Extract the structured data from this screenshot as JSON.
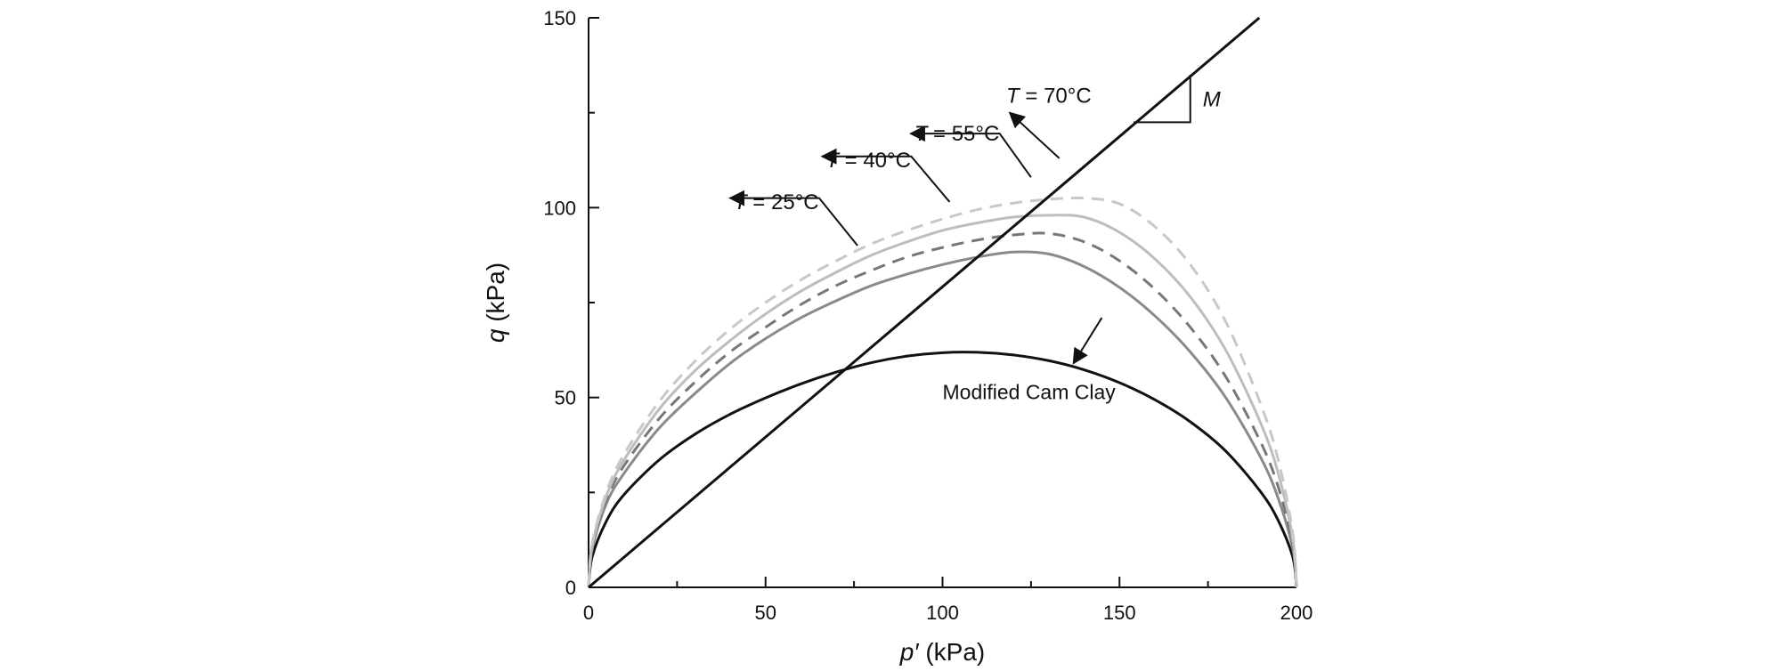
{
  "chart_data": {
    "type": "line",
    "xlabel_var": "p′",
    "xlabel_unit": " (kPa)",
    "ylabel_var": "q",
    "ylabel_unit": " (kPa)",
    "xlim": [
      0,
      200
    ],
    "ylim": [
      0,
      150
    ],
    "x_ticks": [
      0,
      50,
      100,
      150,
      200
    ],
    "y_ticks": [
      0,
      50,
      100,
      150
    ],
    "grid": false,
    "series": [
      {
        "key": "mcc",
        "name": "Modified Cam Clay",
        "color": "#111111",
        "dashed": false,
        "x": [
          0,
          1,
          5,
          10,
          20,
          30,
          40,
          50,
          60,
          70,
          80,
          90,
          100,
          110,
          120,
          130,
          140,
          150,
          160,
          170,
          180,
          190,
          195,
          199,
          200
        ],
        "y": [
          0,
          8,
          17.4,
          24.4,
          33.6,
          40.3,
          45.6,
          49.9,
          53.6,
          56.7,
          59.2,
          60.9,
          61.8,
          61.9,
          61.2,
          59.7,
          57.3,
          53.9,
          49.4,
          43.6,
          35.9,
          25.0,
          17.3,
          7.8,
          0
        ]
      },
      {
        "key": "t25",
        "name": "T = 25°C",
        "color": "#8a8a8a",
        "dashed": false,
        "x": [
          0,
          1,
          5,
          10,
          20,
          30,
          40,
          50,
          60,
          70,
          80,
          90,
          100,
          110,
          120,
          130,
          140,
          150,
          160,
          170,
          180,
          190,
          195,
          199,
          200
        ],
        "y": [
          0,
          10,
          22,
          30,
          42,
          51,
          59,
          65.5,
          71,
          75.5,
          79.5,
          82.5,
          85,
          87,
          88.3,
          87.8,
          84.5,
          79,
          71.5,
          62,
          50,
          34,
          23,
          10,
          0
        ]
      },
      {
        "key": "t40",
        "name": "T = 40°C",
        "color": "#777777",
        "dashed": true,
        "x": [
          0,
          1,
          5,
          10,
          20,
          30,
          40,
          50,
          60,
          70,
          80,
          90,
          100,
          110,
          120,
          130,
          140,
          150,
          160,
          170,
          180,
          190,
          195,
          199,
          200
        ],
        "y": [
          0,
          10.5,
          23,
          32,
          44.5,
          54,
          62,
          68.5,
          74.5,
          79.5,
          83.5,
          87,
          89.5,
          91.5,
          92.8,
          93.2,
          91,
          86,
          78.5,
          68.5,
          55.5,
          38,
          26,
          11,
          0
        ]
      },
      {
        "key": "t55",
        "name": "T = 55°C",
        "color": "#bdbdbd",
        "dashed": false,
        "x": [
          0,
          1,
          5,
          10,
          20,
          30,
          40,
          50,
          60,
          70,
          80,
          90,
          100,
          110,
          120,
          130,
          140,
          150,
          160,
          170,
          180,
          190,
          195,
          199,
          200
        ],
        "y": [
          0,
          11,
          24,
          33.5,
          47,
          57,
          65,
          72,
          78,
          83,
          87.5,
          91,
          94,
          96,
          97.5,
          98,
          97.5,
          93.5,
          86.5,
          76.5,
          62.5,
          43,
          29.5,
          12.5,
          0
        ]
      },
      {
        "key": "t70",
        "name": "T = 70°C",
        "color": "#c8c8c8",
        "dashed": true,
        "x": [
          0,
          1,
          5,
          10,
          20,
          30,
          40,
          50,
          60,
          70,
          80,
          90,
          100,
          110,
          120,
          130,
          140,
          150,
          160,
          170,
          180,
          190,
          195,
          199,
          200
        ],
        "y": [
          0,
          11.5,
          25,
          35,
          49,
          59.5,
          68,
          75,
          81,
          86,
          90.5,
          94,
          97,
          99.5,
          101.2,
          102.2,
          102.5,
          101,
          95,
          85,
          70,
          48,
          33,
          14,
          0
        ]
      },
      {
        "key": "csl",
        "name": "",
        "color": "#111111",
        "dashed": false,
        "x": [
          0,
          189.5
        ],
        "y": [
          0,
          150
        ]
      }
    ],
    "annotations": [
      {
        "key": "a70",
        "var": "T",
        "rest": " = 70°C",
        "label_x": 118,
        "label_y": 129.5,
        "arrow_from": [
          133,
          113
        ],
        "arrow_to": [
          119,
          125
        ]
      },
      {
        "key": "a55",
        "var": "T",
        "rest": " = 55°C",
        "label_x": 92,
        "label_y": 119.5,
        "arrow_from": [
          125,
          108
        ],
        "arrow_to": [
          91,
          119.5
        ]
      },
      {
        "key": "a40",
        "var": "T",
        "rest": " = 40°C",
        "label_x": 67,
        "label_y": 112.5,
        "arrow_from": [
          102,
          101.5
        ],
        "arrow_to": [
          66,
          113.5
        ]
      },
      {
        "key": "a25",
        "var": "T",
        "rest": " = 25°C",
        "label_x": 41,
        "label_y": 101.5,
        "arrow_from": [
          76,
          90
        ],
        "arrow_to": [
          40,
          102.5
        ]
      },
      {
        "key": "amcc",
        "text": "Modified Cam Clay",
        "label_x": 100,
        "label_y": 51.5,
        "arrow_from": [
          145,
          71
        ],
        "arrow_to": [
          137,
          59
        ]
      }
    ],
    "slope_label": "M",
    "slope_triangle": {
      "x1": 154,
      "x2": 170,
      "y_base": 122.5,
      "y_top": 135
    }
  }
}
